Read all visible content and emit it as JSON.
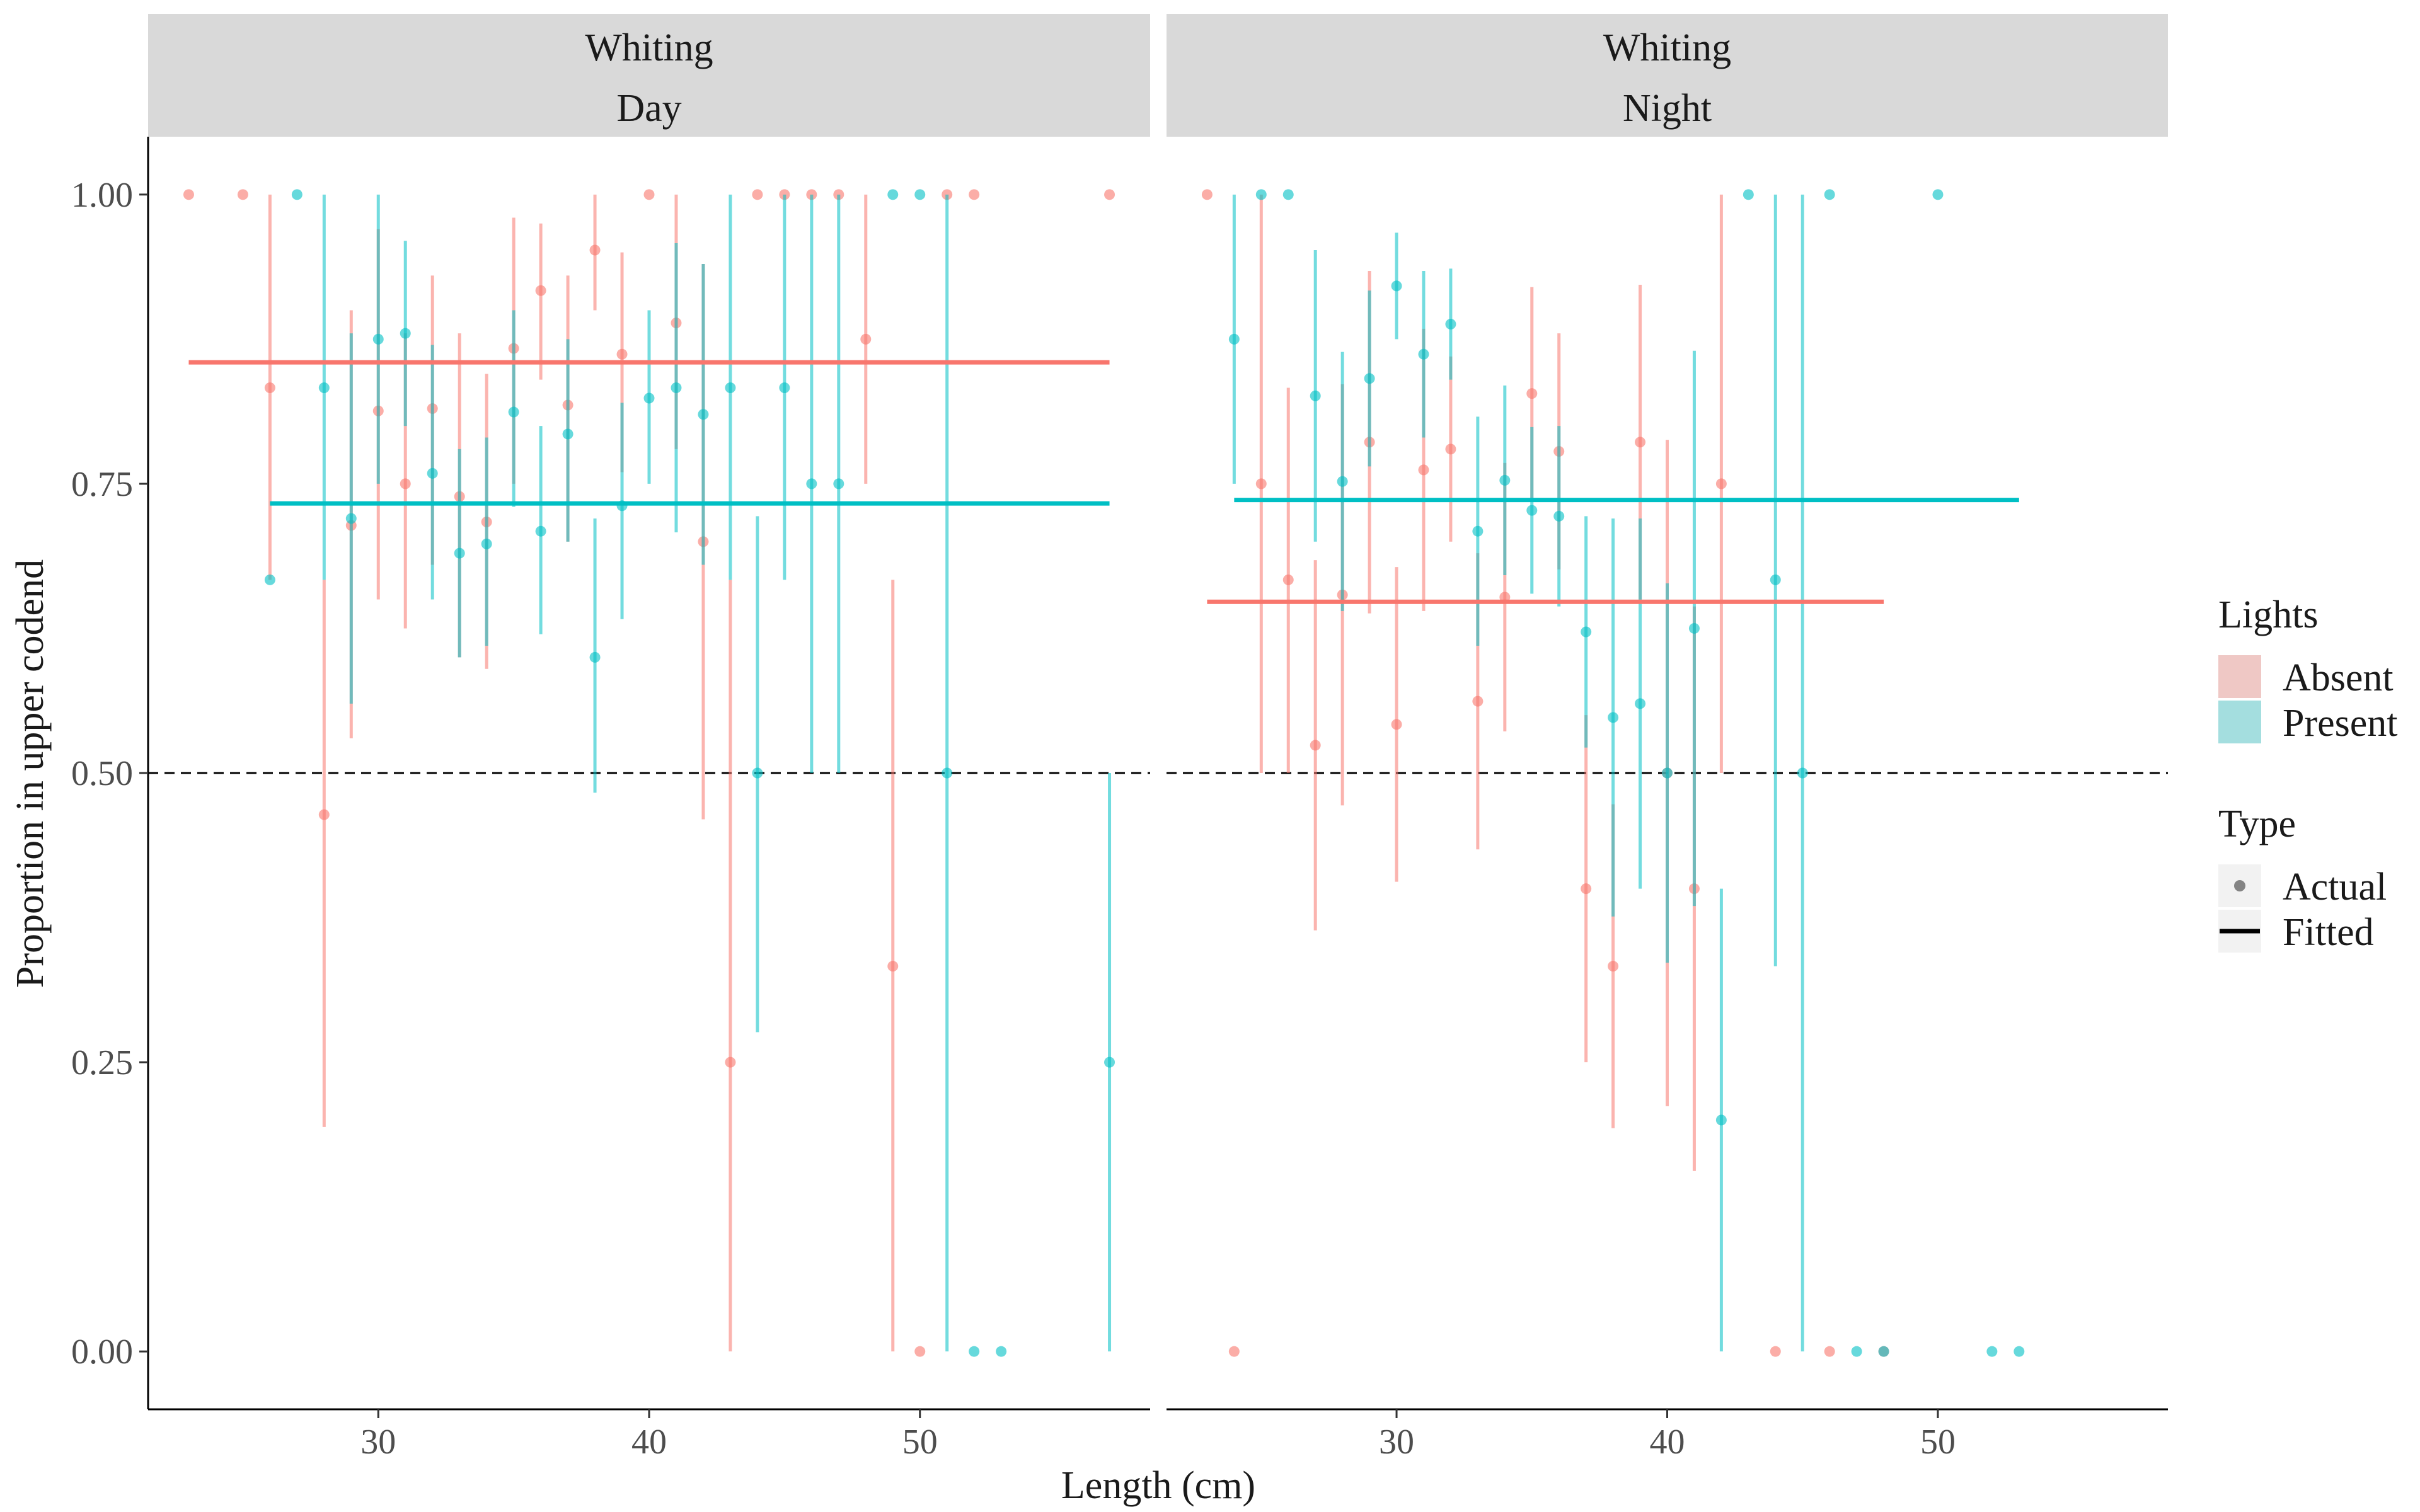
{
  "chart_data": {
    "type": "scatter",
    "xlabel": "Length (cm)",
    "ylabel": "Proportion in upper codend",
    "xlim": [
      21.5,
      58.5
    ],
    "ylim": [
      -0.05,
      1.05
    ],
    "x_ticks": [
      30,
      40,
      50
    ],
    "y_ticks": [
      0.0,
      0.25,
      0.5,
      0.75,
      1.0
    ],
    "y_tick_labels": [
      "0.00",
      "0.25",
      "0.50",
      "0.75",
      "1.00"
    ],
    "reference_line": {
      "y": 0.5,
      "style": "dashed"
    },
    "grid": false,
    "legend": {
      "placement": "right",
      "lights_title": "Lights",
      "lights": [
        {
          "label": "Absent",
          "color": "#F8766D"
        },
        {
          "label": "Present",
          "color": "#00BFC4"
        }
      ],
      "type_title": "Type",
      "types": [
        {
          "label": "Actual",
          "shape": "point"
        },
        {
          "label": "Fitted",
          "shape": "line"
        }
      ]
    },
    "panels": [
      {
        "strip_line1": "Whiting",
        "strip_line2": "Day",
        "fitted": [
          {
            "lights": "Absent",
            "x": [
              23,
              57
            ],
            "y": 0.855
          },
          {
            "lights": "Present",
            "x": [
              26,
              57
            ],
            "y": 0.733
          }
        ],
        "series": [
          {
            "lights": "Absent",
            "points": [
              [
                23,
                1.0,
                null,
                null
              ],
              [
                25,
                1.0,
                null,
                null
              ],
              [
                26,
                0.833,
                0.667,
                1.0
              ],
              [
                28,
                0.464,
                0.194,
                0.667
              ],
              [
                29,
                0.714,
                0.53,
                0.9
              ],
              [
                30,
                0.813,
                0.65,
                0.97
              ],
              [
                31,
                0.75,
                0.625,
                0.88
              ],
              [
                32,
                0.815,
                0.68,
                0.93
              ],
              [
                33,
                0.739,
                0.6,
                0.88
              ],
              [
                34,
                0.717,
                0.59,
                0.845
              ],
              [
                35,
                0.867,
                0.75,
                0.98
              ],
              [
                36,
                0.917,
                0.84,
                0.975
              ],
              [
                37,
                0.818,
                0.7,
                0.93
              ],
              [
                38,
                0.952,
                0.9,
                1.0
              ],
              [
                39,
                0.862,
                0.76,
                0.95
              ],
              [
                40,
                1.0,
                null,
                null
              ],
              [
                41,
                0.889,
                0.78,
                1.0
              ],
              [
                42,
                0.7,
                0.46,
                0.94
              ],
              [
                43,
                0.25,
                0.0,
                0.667
              ],
              [
                44,
                1.0,
                null,
                null
              ],
              [
                45,
                1.0,
                null,
                null
              ],
              [
                46,
                1.0,
                null,
                null
              ],
              [
                47,
                1.0,
                null,
                null
              ],
              [
                48,
                0.875,
                0.75,
                1.0
              ],
              [
                49,
                0.333,
                0.0,
                0.667
              ],
              [
                50,
                0.0,
                null,
                null
              ],
              [
                51,
                1.0,
                null,
                null
              ],
              [
                52,
                1.0,
                null,
                null
              ],
              [
                57,
                1.0,
                null,
                null
              ]
            ]
          },
          {
            "lights": "Present",
            "points": [
              [
                26,
                0.667,
                null,
                null
              ],
              [
                27,
                1.0,
                null,
                null
              ],
              [
                28,
                0.833,
                0.667,
                1.0
              ],
              [
                29,
                0.72,
                0.56,
                0.88
              ],
              [
                30,
                0.875,
                0.75,
                1.0
              ],
              [
                31,
                0.88,
                0.8,
                0.96
              ],
              [
                32,
                0.759,
                0.65,
                0.87
              ],
              [
                33,
                0.69,
                0.6,
                0.78
              ],
              [
                34,
                0.698,
                0.61,
                0.79
              ],
              [
                35,
                0.812,
                0.73,
                0.9
              ],
              [
                36,
                0.709,
                0.62,
                0.8
              ],
              [
                37,
                0.793,
                0.7,
                0.875
              ],
              [
                38,
                0.6,
                0.483,
                0.72
              ],
              [
                39,
                0.731,
                0.633,
                0.82
              ],
              [
                40,
                0.824,
                0.75,
                0.9
              ],
              [
                41,
                0.833,
                0.708,
                0.958
              ],
              [
                42,
                0.81,
                0.68,
                0.94
              ],
              [
                43,
                0.833,
                0.667,
                1.0
              ],
              [
                44,
                0.5,
                0.276,
                0.722
              ],
              [
                45,
                0.833,
                0.667,
                1.0
              ],
              [
                46,
                0.75,
                0.5,
                1.0
              ],
              [
                47,
                0.75,
                0.5,
                1.0
              ],
              [
                49,
                1.0,
                null,
                null
              ],
              [
                50,
                1.0,
                null,
                null
              ],
              [
                51,
                0.5,
                0.0,
                1.0
              ],
              [
                52,
                0.0,
                null,
                null
              ],
              [
                53,
                0.0,
                null,
                null
              ],
              [
                57,
                0.25,
                0.0,
                0.5
              ]
            ]
          }
        ]
      },
      {
        "strip_line1": "Whiting",
        "strip_line2": "Night",
        "fitted": [
          {
            "lights": "Absent",
            "x": [
              23,
              48
            ],
            "y": 0.648
          },
          {
            "lights": "Present",
            "x": [
              24,
              53
            ],
            "y": 0.736
          }
        ],
        "series": [
          {
            "lights": "Absent",
            "points": [
              [
                23,
                1.0,
                null,
                null
              ],
              [
                24,
                0.0,
                null,
                null
              ],
              [
                25,
                0.75,
                0.5,
                1.0
              ],
              [
                26,
                0.667,
                0.5,
                0.833
              ],
              [
                27,
                0.524,
                0.364,
                0.684
              ],
              [
                28,
                0.654,
                0.472,
                0.836
              ],
              [
                29,
                0.786,
                0.638,
                0.934
              ],
              [
                30,
                0.542,
                0.406,
                0.678
              ],
              [
                31,
                0.762,
                0.64,
                0.884
              ],
              [
                32,
                0.78,
                0.7,
                0.86
              ],
              [
                33,
                0.562,
                0.434,
                0.69
              ],
              [
                34,
                0.652,
                0.536,
                0.768
              ],
              [
                35,
                0.828,
                0.736,
                0.92
              ],
              [
                36,
                0.778,
                0.676,
                0.88
              ],
              [
                37,
                0.4,
                0.25,
                0.55
              ],
              [
                38,
                0.333,
                0.193,
                0.473
              ],
              [
                39,
                0.786,
                0.65,
                0.922
              ],
              [
                40,
                0.5,
                0.212,
                0.788
              ],
              [
                41,
                0.4,
                0.156,
                0.644
              ],
              [
                42,
                0.75,
                0.5,
                1.0
              ],
              [
                44,
                0.0,
                null,
                null
              ],
              [
                46,
                0.0,
                null,
                null
              ],
              [
                48,
                0.0,
                null,
                null
              ]
            ]
          },
          {
            "lights": "Present",
            "points": [
              [
                24,
                0.875,
                0.75,
                1.0
              ],
              [
                25,
                1.0,
                null,
                null
              ],
              [
                26,
                1.0,
                null,
                null
              ],
              [
                27,
                0.826,
                0.7,
                0.952
              ],
              [
                28,
                0.752,
                0.64,
                0.864
              ],
              [
                29,
                0.841,
                0.765,
                0.917
              ],
              [
                30,
                0.921,
                0.875,
                0.967
              ],
              [
                31,
                0.862,
                0.79,
                0.934
              ],
              [
                32,
                0.888,
                0.84,
                0.936
              ],
              [
                33,
                0.709,
                0.61,
                0.808
              ],
              [
                34,
                0.753,
                0.671,
                0.835
              ],
              [
                35,
                0.727,
                0.655,
                0.799
              ],
              [
                36,
                0.722,
                0.644,
                0.8
              ],
              [
                37,
                0.622,
                0.522,
                0.722
              ],
              [
                38,
                0.548,
                0.376,
                0.72
              ],
              [
                39,
                0.56,
                0.4,
                0.72
              ],
              [
                40,
                0.5,
                0.336,
                0.664
              ],
              [
                41,
                0.625,
                0.385,
                0.865
              ],
              [
                42,
                0.2,
                0.0,
                0.4
              ],
              [
                43,
                1.0,
                null,
                null
              ],
              [
                44,
                0.667,
                0.333,
                1.0
              ],
              [
                45,
                0.5,
                0.0,
                1.0
              ],
              [
                46,
                1.0,
                null,
                null
              ],
              [
                47,
                0.0,
                null,
                null
              ],
              [
                48,
                0.0,
                null,
                null
              ],
              [
                50,
                1.0,
                null,
                null
              ],
              [
                52,
                0.0,
                null,
                null
              ],
              [
                53,
                0.0,
                null,
                null
              ]
            ]
          }
        ]
      }
    ]
  }
}
